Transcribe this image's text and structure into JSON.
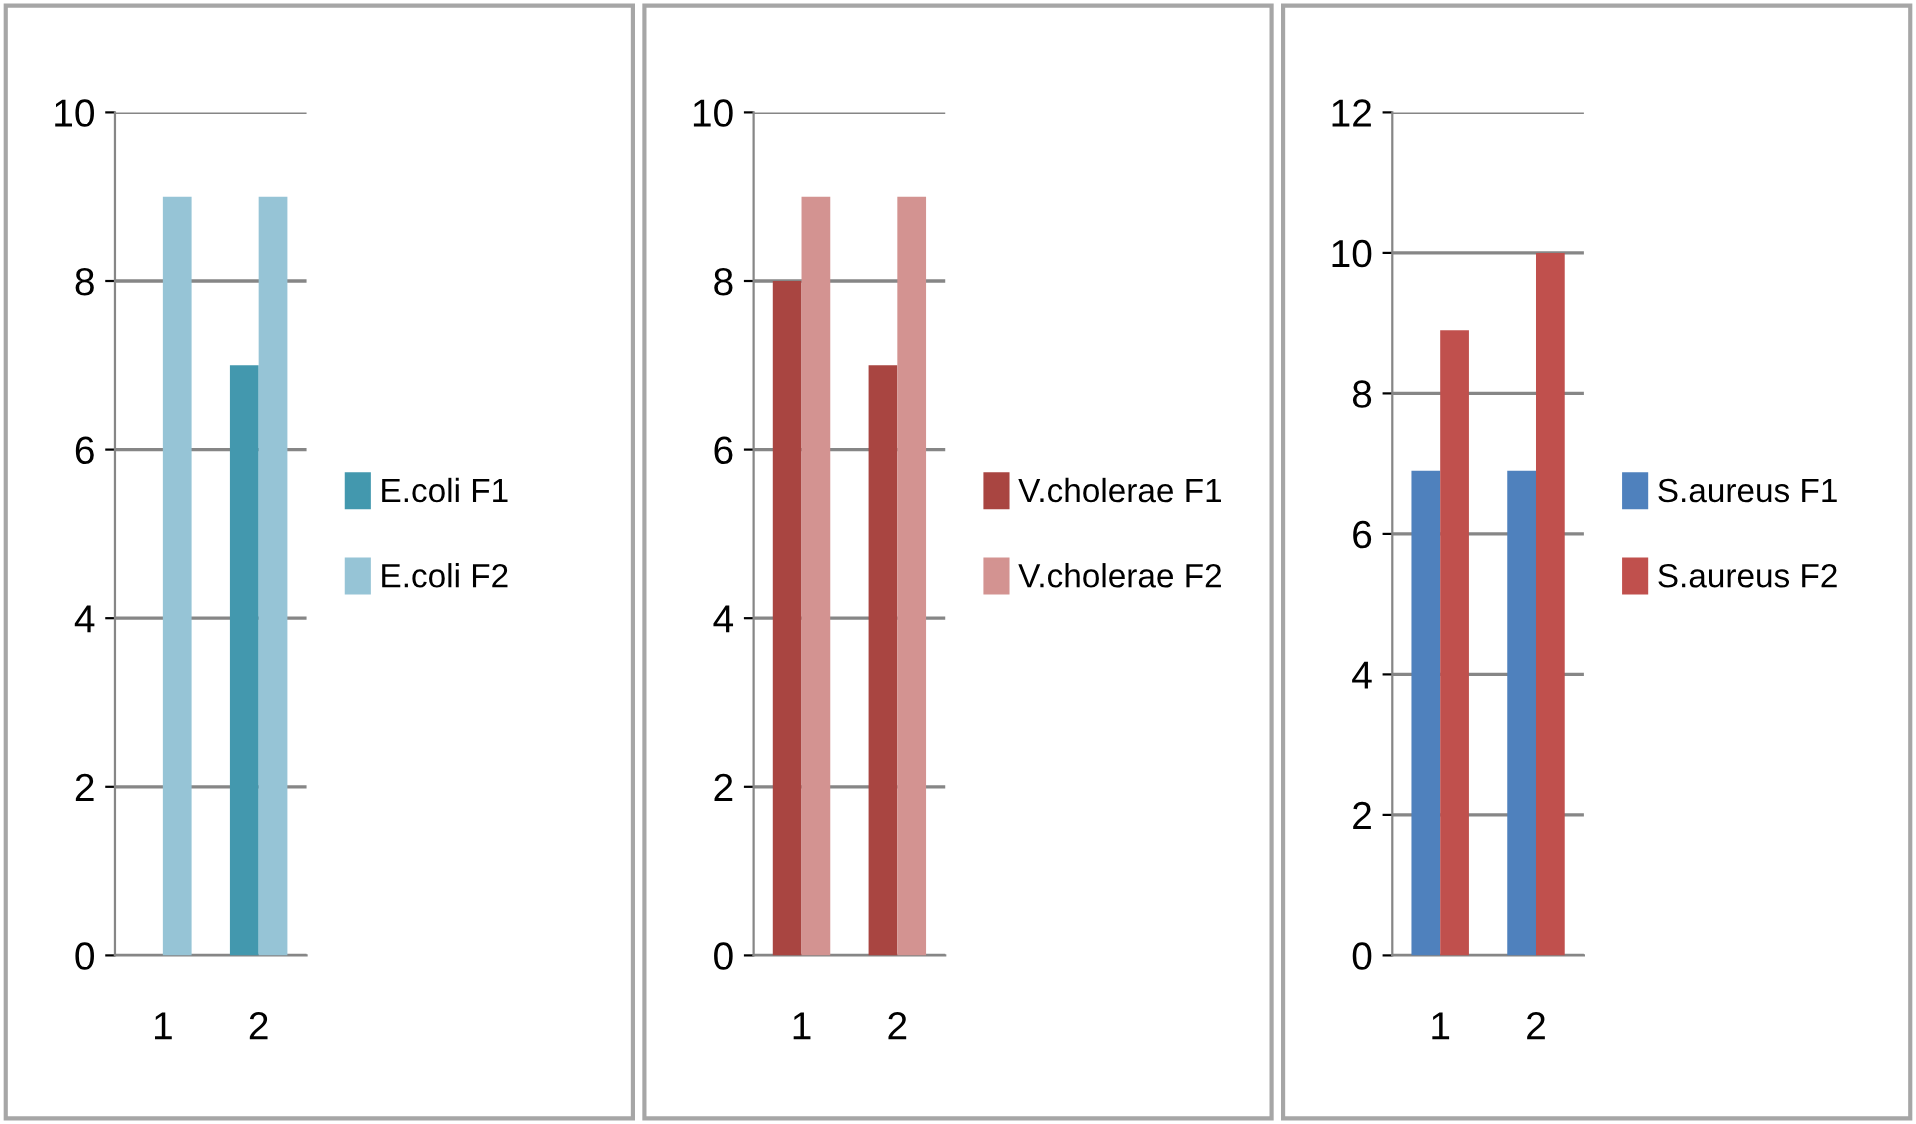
{
  "chart_data": [
    {
      "type": "bar",
      "categories": [
        "1",
        "2"
      ],
      "ylim": [
        0,
        10
      ],
      "yticks": [
        0,
        2,
        4,
        6,
        8,
        10
      ],
      "grid": "y",
      "legend": "right",
      "series": [
        {
          "name": "E.coli F1",
          "color": "#4398ae",
          "values": [
            0,
            7
          ]
        },
        {
          "name": "E.coli F2",
          "color": "#96c4d6",
          "values": [
            9,
            9
          ]
        }
      ]
    },
    {
      "type": "bar",
      "categories": [
        "1",
        "2"
      ],
      "ylim": [
        0,
        10
      ],
      "yticks": [
        0,
        2,
        4,
        6,
        8,
        10
      ],
      "grid": "y",
      "legend": "right",
      "series": [
        {
          "name": "V.cholerae F1",
          "color": "#a94541",
          "values": [
            8,
            7
          ]
        },
        {
          "name": "V.cholerae F2",
          "color": "#d39391",
          "values": [
            9,
            9
          ]
        }
      ]
    },
    {
      "type": "bar",
      "categories": [
        "1",
        "2"
      ],
      "ylim": [
        0,
        12
      ],
      "yticks": [
        0,
        2,
        4,
        6,
        8,
        10,
        12
      ],
      "grid": "y",
      "legend": "right",
      "series": [
        {
          "name": "S.aureus F1",
          "color": "#4f81bd",
          "values": [
            6.9,
            6.9
          ]
        },
        {
          "name": "S.aureus F2",
          "color": "#c0504d",
          "values": [
            8.9,
            10
          ]
        }
      ]
    }
  ]
}
